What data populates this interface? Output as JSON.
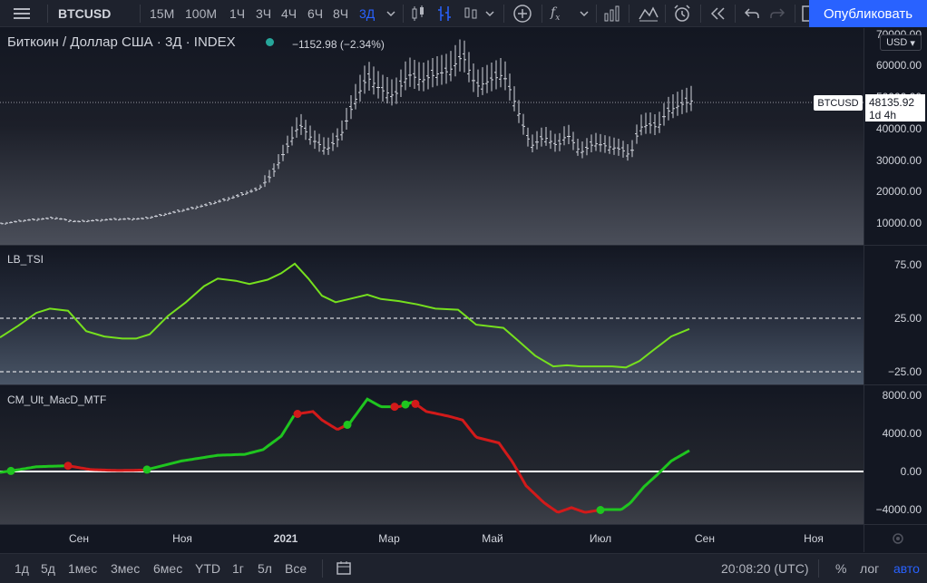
{
  "toolbar": {
    "symbol": "BTCUSD",
    "intervals": [
      "15М",
      "100М",
      "1Ч",
      "3Ч",
      "4Ч",
      "6Ч",
      "8Ч",
      "3Д"
    ],
    "active_interval": "3Д",
    "publish_label": "Опубликовать"
  },
  "legend": {
    "title": "Биткоин / Доллар США · 3Д · INDEX",
    "change": "−1152.98 (−2.34%)"
  },
  "price_axis": {
    "currency": "USD",
    "ticks": [
      "70000.00",
      "60000.00",
      "50000.00",
      "40000.00",
      "30000.00",
      "20000.00",
      "10000.00"
    ],
    "last_price": "48135.92",
    "countdown": "1d 4h",
    "symbol_tag": "BTCUSD"
  },
  "indicators": {
    "tsi": {
      "name": "LB_TSI",
      "ticks": [
        "75.00",
        "25.00",
        "−25.00"
      ]
    },
    "macd": {
      "name": "CM_Ult_MacD_MTF",
      "ticks": [
        "8000.00",
        "4000.00",
        "0.00",
        "−4000.00"
      ]
    }
  },
  "time_axis": {
    "labels": [
      "Сен",
      "Ноя",
      "2021",
      "Мар",
      "Май",
      "Июл",
      "Сен",
      "Ноя"
    ]
  },
  "bottombar": {
    "ranges": [
      "1д",
      "5д",
      "1мес",
      "3мес",
      "6мес",
      "YTD",
      "1г",
      "5л",
      "Все"
    ],
    "clock": "20:08:20 (UTC)",
    "percent": "%",
    "log": "лог",
    "auto": "авто"
  },
  "colors": {
    "tsi_line": "#76e01e",
    "macd_up": "#1fc51f",
    "macd_down": "#d21a1a",
    "accent": "#2962ff",
    "candles": "#d1d4dc"
  },
  "chart_data": [
    {
      "type": "line",
      "name": "BTCUSD price",
      "x": [
        "2020-07",
        "2020-08",
        "2020-09",
        "2020-10",
        "2020-11",
        "2020-12",
        "2021-01",
        "2021-02",
        "2021-03",
        "2021-04",
        "2021-05",
        "2021-06",
        "2021-07",
        "2021-08"
      ],
      "values": [
        9200,
        11500,
        10500,
        11000,
        15000,
        19000,
        32000,
        45000,
        57000,
        58000,
        38000,
        34000,
        33000,
        48135.92
      ],
      "ylim": [
        5000,
        72000
      ]
    },
    {
      "type": "line",
      "name": "LB_TSI",
      "ylim": [
        -30,
        85
      ]
    },
    {
      "type": "line",
      "name": "CM_Ult_MacD_MTF",
      "ylim": [
        -5500,
        8500
      ]
    }
  ]
}
